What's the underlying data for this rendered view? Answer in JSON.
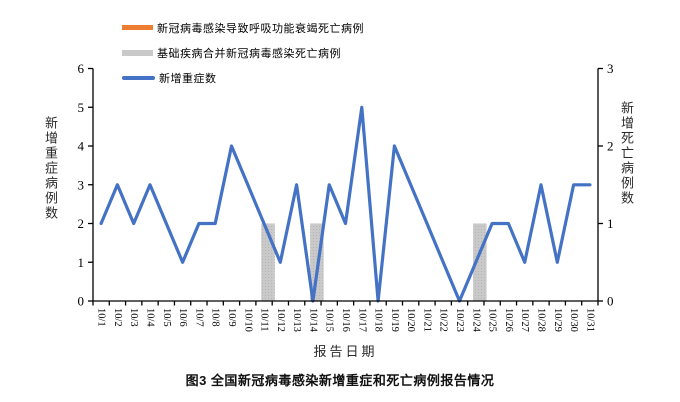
{
  "figure": {
    "caption": "图3 全国新冠病毒感染新增重症和死亡病例报告情况"
  },
  "chart_data": {
    "type": "combo-bar-line",
    "title": "",
    "legend_position": "top-left",
    "grid": false,
    "categories": [
      "10/1",
      "10/2",
      "10/3",
      "10/4",
      "10/5",
      "10/6",
      "10/7",
      "10/8",
      "10/9",
      "10/10",
      "10/11",
      "10/12",
      "10/13",
      "10/14",
      "10/15",
      "10/16",
      "10/17",
      "10/18",
      "10/19",
      "10/20",
      "10/21",
      "10/22",
      "10/23",
      "10/24",
      "10/25",
      "10/26",
      "10/27",
      "10/28",
      "10/29",
      "10/30",
      "10/31"
    ],
    "series": [
      {
        "name": "新冠病毒感染导致呼吸功能衰竭死亡病例",
        "type": "bar",
        "axis": "right",
        "color": "#ED7D31",
        "values": [
          0,
          0,
          0,
          0,
          0,
          0,
          0,
          0,
          0,
          0,
          0,
          0,
          0,
          0,
          0,
          0,
          0,
          0,
          0,
          0,
          0,
          0,
          0,
          0,
          0,
          0,
          0,
          0,
          0,
          0,
          0
        ]
      },
      {
        "name": "基础疾病合并新冠病毒感染死亡病例",
        "type": "bar",
        "axis": "right",
        "color": "#C9C9C9",
        "values": [
          0,
          0,
          0,
          0,
          0,
          0,
          0,
          0,
          0,
          0,
          1,
          0,
          0,
          1,
          0,
          0,
          0,
          0,
          0,
          0,
          0,
          0,
          0,
          1,
          0,
          0,
          0,
          0,
          0,
          0,
          0
        ]
      },
      {
        "name": "新增重症数",
        "type": "line",
        "axis": "left",
        "color": "#4472C4",
        "values": [
          2,
          3,
          2,
          3,
          2,
          1,
          2,
          2,
          4,
          3,
          2,
          1,
          3,
          0,
          3,
          2,
          5,
          0,
          4,
          3,
          2,
          1,
          0,
          1,
          2,
          2,
          1,
          3,
          1,
          3,
          3
        ]
      }
    ],
    "left_axis": {
      "label": "新增重症病例数",
      "min": 0,
      "max": 6,
      "ticks": [
        0,
        1,
        2,
        3,
        4,
        5,
        6
      ]
    },
    "right_axis": {
      "label": "新增死亡病例数",
      "min": 0,
      "max": 3,
      "ticks": [
        0,
        1,
        2,
        3
      ]
    },
    "x_axis": {
      "label": "报告日期"
    }
  }
}
